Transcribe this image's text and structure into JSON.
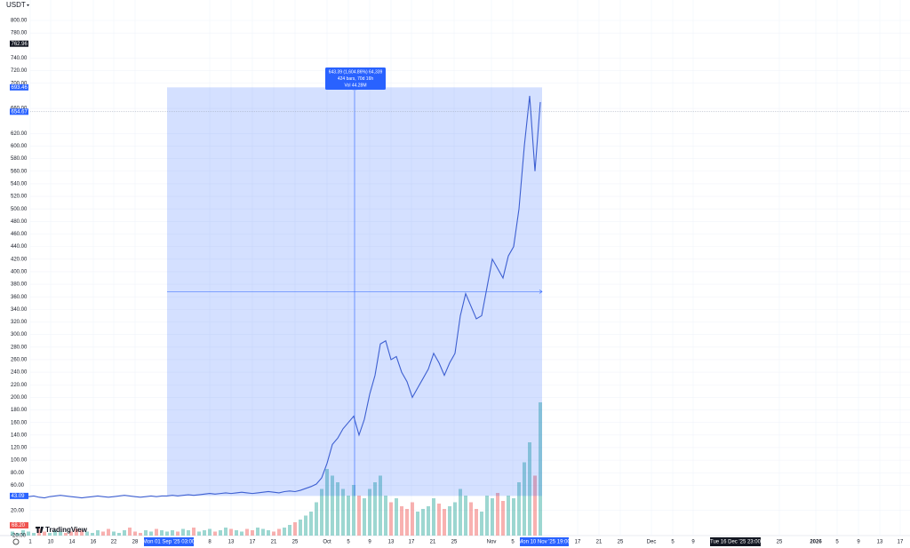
{
  "chart_data": {
    "type": "line",
    "currency": "USDT",
    "brand": "TradingView",
    "color": "#3d5fd1",
    "values": [
      40,
      41,
      42,
      42,
      43,
      41,
      40,
      42,
      43,
      44,
      43,
      42,
      41,
      40,
      41,
      42,
      43,
      42,
      41,
      42,
      43,
      44,
      43,
      42,
      41,
      42,
      43,
      42,
      43,
      43,
      44,
      43,
      44,
      45,
      44,
      45,
      46,
      47,
      46,
      47,
      48,
      47,
      48,
      49,
      48,
      47,
      48,
      49,
      50,
      49,
      48,
      50,
      51,
      50,
      52,
      55,
      58,
      62,
      72,
      95,
      125,
      135,
      150,
      160,
      170,
      140,
      165,
      205,
      235,
      285,
      290,
      260,
      265,
      240,
      225,
      200,
      215,
      230,
      245,
      270,
      255,
      235,
      255,
      270,
      330,
      365,
      345,
      325,
      330,
      375,
      420,
      405,
      390,
      425,
      440,
      500,
      600,
      680,
      560,
      670
    ],
    "volume": [
      3,
      2,
      4,
      3,
      2,
      5,
      3,
      2,
      4,
      3,
      2,
      3,
      5,
      4,
      3,
      2,
      4,
      3,
      5,
      3,
      2,
      4,
      6,
      3,
      2,
      4,
      3,
      5,
      4,
      3,
      4,
      3,
      5,
      4,
      6,
      3,
      4,
      5,
      3,
      4,
      6,
      5,
      4,
      3,
      5,
      4,
      6,
      5,
      4,
      3,
      5,
      6,
      8,
      10,
      12,
      15,
      18,
      25,
      35,
      50,
      45,
      40,
      35,
      30,
      38,
      30,
      28,
      35,
      40,
      45,
      30,
      25,
      28,
      22,
      20,
      25,
      18,
      20,
      22,
      28,
      24,
      20,
      22,
      25,
      35,
      30,
      25,
      20,
      18,
      30,
      28,
      32,
      26,
      30,
      28,
      40,
      55,
      70,
      45,
      100
    ],
    "ylim": [
      -20,
      800
    ],
    "yticks": [
      {
        "value": 800,
        "label": "800.00"
      },
      {
        "value": 780,
        "label": "780.00"
      },
      {
        "value": 740,
        "label": "740.00"
      },
      {
        "value": 720,
        "label": "720.00"
      },
      {
        "value": 700,
        "label": "700.00"
      },
      {
        "value": 660,
        "label": "660.00"
      },
      {
        "value": 620,
        "label": "620.00"
      },
      {
        "value": 600,
        "label": "600.00"
      },
      {
        "value": 580,
        "label": "580.00"
      },
      {
        "value": 560,
        "label": "560.00"
      },
      {
        "value": 540,
        "label": "540.00"
      },
      {
        "value": 520,
        "label": "520.00"
      },
      {
        "value": 500,
        "label": "500.00"
      },
      {
        "value": 480,
        "label": "480.00"
      },
      {
        "value": 460,
        "label": "460.00"
      },
      {
        "value": 440,
        "label": "440.00"
      },
      {
        "value": 420,
        "label": "420.00"
      },
      {
        "value": 400,
        "label": "400.00"
      },
      {
        "value": 380,
        "label": "380.00"
      },
      {
        "value": 360,
        "label": "360.00"
      },
      {
        "value": 340,
        "label": "340.00"
      },
      {
        "value": 320,
        "label": "320.00"
      },
      {
        "value": 300,
        "label": "300.00"
      },
      {
        "value": 280,
        "label": "280.00"
      },
      {
        "value": 260,
        "label": "260.00"
      },
      {
        "value": 240,
        "label": "240.00"
      },
      {
        "value": 220,
        "label": "220.00"
      },
      {
        "value": 200,
        "label": "200.00"
      },
      {
        "value": 180,
        "label": "180.00"
      },
      {
        "value": 160,
        "label": "160.00"
      },
      {
        "value": 140,
        "label": "140.00"
      },
      {
        "value": 120,
        "label": "120.00"
      },
      {
        "value": 100,
        "label": "100.00"
      },
      {
        "value": 80,
        "label": "80.00"
      },
      {
        "value": 60,
        "label": "60.00"
      },
      {
        "value": 20,
        "label": "20.00"
      },
      {
        "value": -20,
        "label": "-20.00"
      }
    ],
    "price_labels": [
      {
        "value": 762.96,
        "label": "762.96",
        "color": "#131722"
      },
      {
        "value": 693.46,
        "label": "693.46",
        "color": "#2962ff"
      },
      {
        "value": 654.67,
        "label": "654.67",
        "color": "#2962ff"
      },
      {
        "value": 43.09,
        "label": "43.09",
        "color": "#2962ff"
      }
    ],
    "volume_label": "68.20",
    "xtick_labels": [
      "1",
      "10",
      "14",
      "16",
      "22",
      "28",
      "8",
      "13",
      "17",
      "21",
      "25",
      "Oct",
      "5",
      "9",
      "13",
      "17",
      "21",
      "25",
      "Nov",
      "5",
      "17",
      "21",
      "25",
      "Dec",
      "5",
      "9",
      "25",
      "2026",
      "5",
      "9",
      "13",
      "17"
    ],
    "time_labels": [
      "Mon 01 Sep '25 03:00",
      "Mon 10 Nov '25 19:00",
      "Tue 16 Dec '25 23:00"
    ],
    "measure": {
      "top": 693.46,
      "bottom": 43.09,
      "lines": [
        "643.39 (1,604.86%) 64,339",
        "424 bars, 70d 16h",
        "Vol 44.28M"
      ]
    }
  }
}
